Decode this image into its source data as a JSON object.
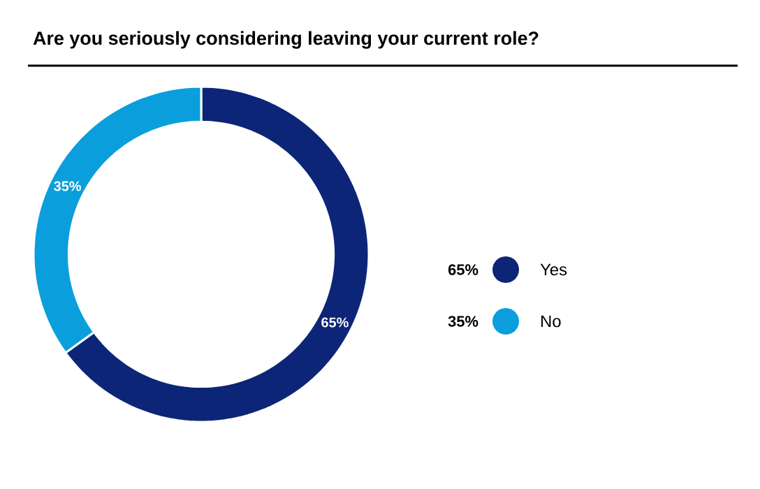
{
  "chart_data": {
    "type": "donut",
    "title": "Are you seriously considering leaving your current role?",
    "categories": [
      "Yes",
      "No"
    ],
    "values": [
      65,
      35
    ],
    "value_labels": [
      "65%",
      "35%"
    ],
    "colors": [
      "#0c2577",
      "#0a9fdc"
    ],
    "legend": "right"
  }
}
